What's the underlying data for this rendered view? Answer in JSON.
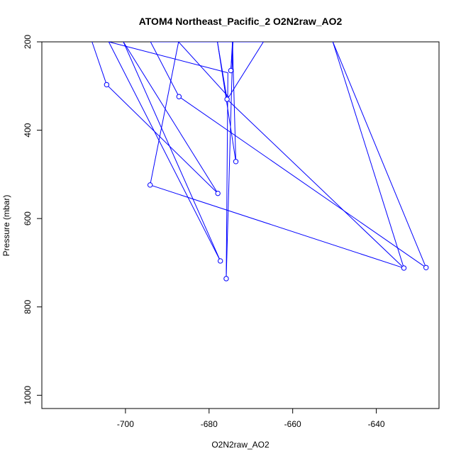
{
  "chart_data": {
    "type": "line",
    "title": "ATOM4 Northeast_Pacific_2 O2N2raw_AO2",
    "xlabel": "O2N2raw_AO2",
    "ylabel": "Pressure (mbar)",
    "xlim": [
      -720,
      -625
    ],
    "ylim": [
      1030,
      200
    ],
    "y_reversed": true,
    "x_ticks": [
      -700,
      -680,
      -660,
      -640
    ],
    "y_ticks": [
      200,
      400,
      600,
      800,
      1000
    ],
    "x_tick_labels": [
      "-700",
      "-680",
      "-660",
      "-640"
    ],
    "y_tick_labels": [
      "200",
      "400",
      "600",
      "800",
      "1000"
    ],
    "grid": false,
    "legend": false,
    "series": [
      {
        "color": "#0000ff",
        "marker": "open-circle",
        "points": [
          {
            "x": -708.0,
            "y": 200,
            "marker": false
          },
          {
            "x": -704.5,
            "y": 297,
            "marker": true
          },
          {
            "x": -677.9,
            "y": 543,
            "marker": true
          },
          {
            "x": -700.5,
            "y": 200,
            "marker": false
          },
          {
            "x": -677.3,
            "y": 696,
            "marker": true
          },
          {
            "x": -704.0,
            "y": 200,
            "marker": false
          },
          {
            "x": -675.5,
            "y": 270,
            "marker": false
          },
          {
            "x": -675.9,
            "y": 736,
            "marker": true
          },
          {
            "x": -674.3,
            "y": 200,
            "marker": false
          },
          {
            "x": -674.8,
            "y": 265,
            "marker": true
          },
          {
            "x": -674.4,
            "y": 200,
            "marker": false
          },
          {
            "x": -673.6,
            "y": 471,
            "marker": true
          },
          {
            "x": -678.0,
            "y": 200,
            "marker": false
          },
          {
            "x": -675.7,
            "y": 330,
            "marker": true
          },
          {
            "x": -633.4,
            "y": 712,
            "marker": true
          },
          {
            "x": -650.4,
            "y": 200,
            "marker": false
          },
          {
            "x": -628.1,
            "y": 711,
            "marker": true
          },
          {
            "x": -687.2,
            "y": 324,
            "marker": true
          },
          {
            "x": -694.0,
            "y": 200,
            "marker": false
          },
          {
            "x": -667.0,
            "y": 200,
            "marker": false
          },
          {
            "x": -675.3,
            "y": 325,
            "marker": false
          },
          {
            "x": -687.3,
            "y": 200,
            "marker": false
          },
          {
            "x": -694.1,
            "y": 524,
            "marker": true
          },
          {
            "x": -633.4,
            "y": 712,
            "marker": false
          }
        ]
      }
    ]
  }
}
